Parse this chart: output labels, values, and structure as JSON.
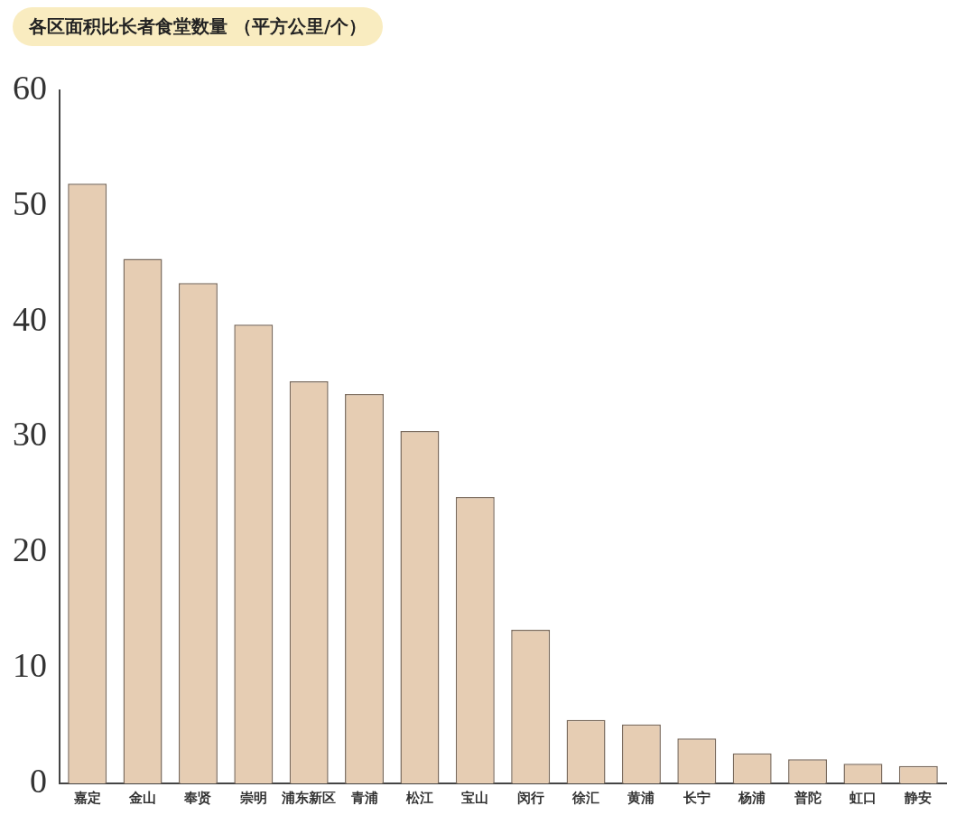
{
  "chart_data": {
    "type": "bar",
    "title": "各区面积比长者食堂数量 （平方公里/个）",
    "categories": [
      "嘉定",
      "金山",
      "奉贤",
      "崇明",
      "浦东新区",
      "青浦",
      "松江",
      "宝山",
      "闵行",
      "徐汇",
      "黄浦",
      "长宁",
      "杨浦",
      "普陀",
      "虹口",
      "静安"
    ],
    "values": [
      51.9,
      45.4,
      43.3,
      39.7,
      34.8,
      33.7,
      30.5,
      24.8,
      13.3,
      5.5,
      5.1,
      3.9,
      2.6,
      2.1,
      1.7,
      1.5
    ],
    "color": "#e6cdb3",
    "ylim": [
      0,
      60
    ],
    "yticks": [
      0,
      10,
      20,
      30,
      40,
      50,
      60
    ],
    "grid": false,
    "legend": false
  }
}
